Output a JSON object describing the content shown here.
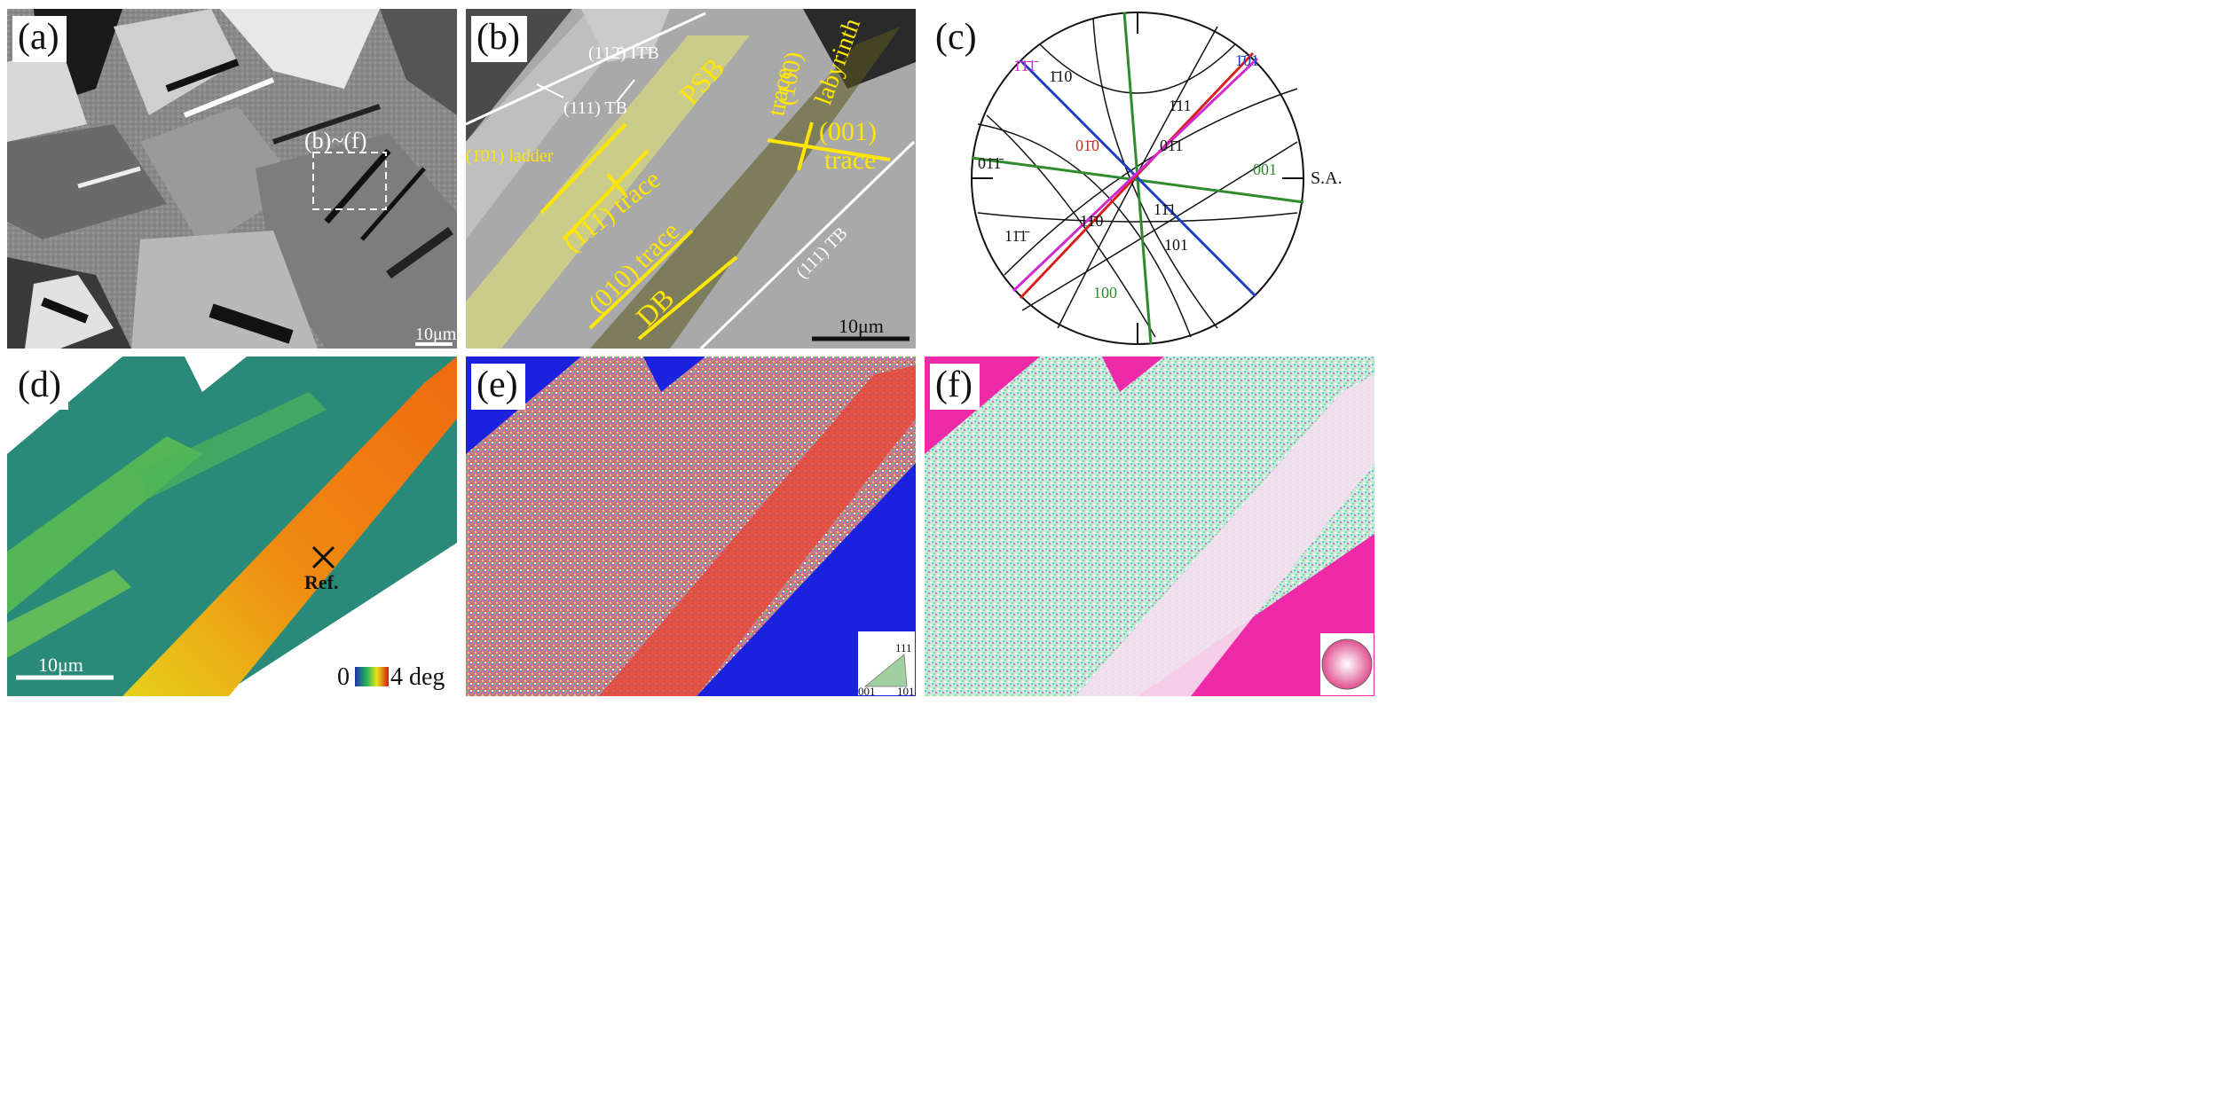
{
  "figure": {
    "panels": {
      "a": {
        "label": "(a)",
        "region_label": "(b)~(f)",
        "scale_bar": "10μm"
      },
      "b": {
        "label": "(b)",
        "annotations": {
          "itb": "(112̄) ITB",
          "tb_top": "(111) TB",
          "psb": "PSB",
          "ladder": "(1̄01) ladder",
          "trace_111": "(111) trace",
          "labyrinth": "labyrinth",
          "trace_100_a": "(100)",
          "trace_100_b": "trace",
          "trace_001_a": "(001)",
          "trace_001_b": "trace",
          "trace_010": "(010) trace",
          "db": "DB",
          "tb_bottom": "(111) TB"
        },
        "scale_bar": "10μm"
      },
      "c": {
        "label": "(c)",
        "poles": {
          "p_1b10": "1̄10",
          "p_1b1b1b": "1̄1̄1̄",
          "p_1b01": "1̄01",
          "p_1b11": "1̄11",
          "p_01b1b": "01̄1̄",
          "p_01b0": "01̄0",
          "p_01b1": "01̄1",
          "p_001": "001",
          "p_11b0": "11̄0",
          "p_11b1": "11̄1",
          "p_11b1b": "11̄1̄",
          "p_101": "101",
          "p_100": "100"
        },
        "sa_label": "S.A.",
        "colors": {
          "green": "#2e8b2e",
          "blue": "#1f3fbf",
          "red": "#d92020",
          "magenta": "#d12ad1",
          "black": "#111111"
        }
      },
      "d": {
        "label": "(d)",
        "ref_label": "Ref.",
        "scale_bar": "10μm",
        "colorbar_min": "0",
        "colorbar_max": "4 deg"
      },
      "e": {
        "label": "(e)",
        "legend": {
          "top": "111",
          "left": "001",
          "right": "101"
        }
      },
      "f": {
        "label": "(f)"
      }
    }
  }
}
